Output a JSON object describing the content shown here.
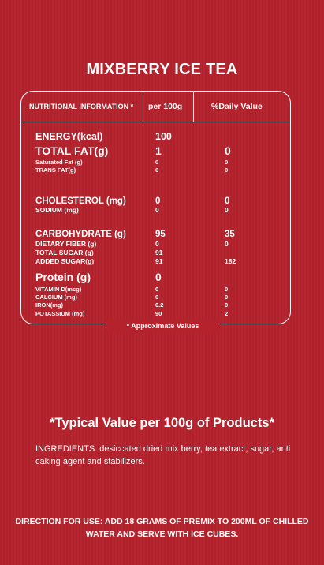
{
  "title": "MIXBERRY ICE TEA",
  "table": {
    "headers": [
      "NUTRITIONAL INFORMATION *",
      "per 100g",
      "%Daily Value"
    ],
    "rows": [
      {
        "name": "ENERGY(kcal)",
        "per100g": "100",
        "dv": ""
      },
      {
        "name": "TOTAL FAT(g)",
        "per100g": "1",
        "dv": "0"
      },
      {
        "name": "Saturated Fat (g)",
        "per100g": "0",
        "dv": "0"
      },
      {
        "name": "TRANS FAT(g)",
        "per100g": "0",
        "dv": "0"
      },
      {
        "name": "CHOLESTEROL (mg)",
        "per100g": "0",
        "dv": "0"
      },
      {
        "name": "SODIUM (mg)",
        "per100g": "0",
        "dv": "0"
      },
      {
        "name": "CARBOHYDRATE (g)",
        "per100g": "95",
        "dv": "35"
      },
      {
        "name": "DIETARY FIBER (g)",
        "per100g": "0",
        "dv": "0"
      },
      {
        "name": "TOTAL SUGAR (g)",
        "per100g": "91",
        "dv": ""
      },
      {
        "name": "ADDED SUGAR(g)",
        "per100g": "91",
        "dv": "182"
      },
      {
        "name": "Protein (g)",
        "per100g": "0",
        "dv": ""
      },
      {
        "name": "VITAMIN D(mcg)",
        "per100g": "0",
        "dv": "0"
      },
      {
        "name": "CALCIUM (mg)",
        "per100g": "0",
        "dv": "0"
      },
      {
        "name": "IRON(mg)",
        "per100g": "0.2",
        "dv": "0"
      },
      {
        "name": "POTASSIUM (mg)",
        "per100g": "90",
        "dv": "2"
      }
    ],
    "footnote": "* Approximate Values"
  },
  "typical_value": "*Typical Value per 100g of Products*",
  "ingredients": "INGREDIENTS: desiccated dried mix berry, tea extract, sugar, anti caking agent and stabilizers.",
  "direction": "DIRECTION FOR USE: ADD 18 GRAMS OF PREMIX TO 200ML OF CHILLED WATER AND SERVE WITH ICE CUBES.",
  "colors": {
    "background": "#b5222c",
    "text": "#ffffff"
  }
}
